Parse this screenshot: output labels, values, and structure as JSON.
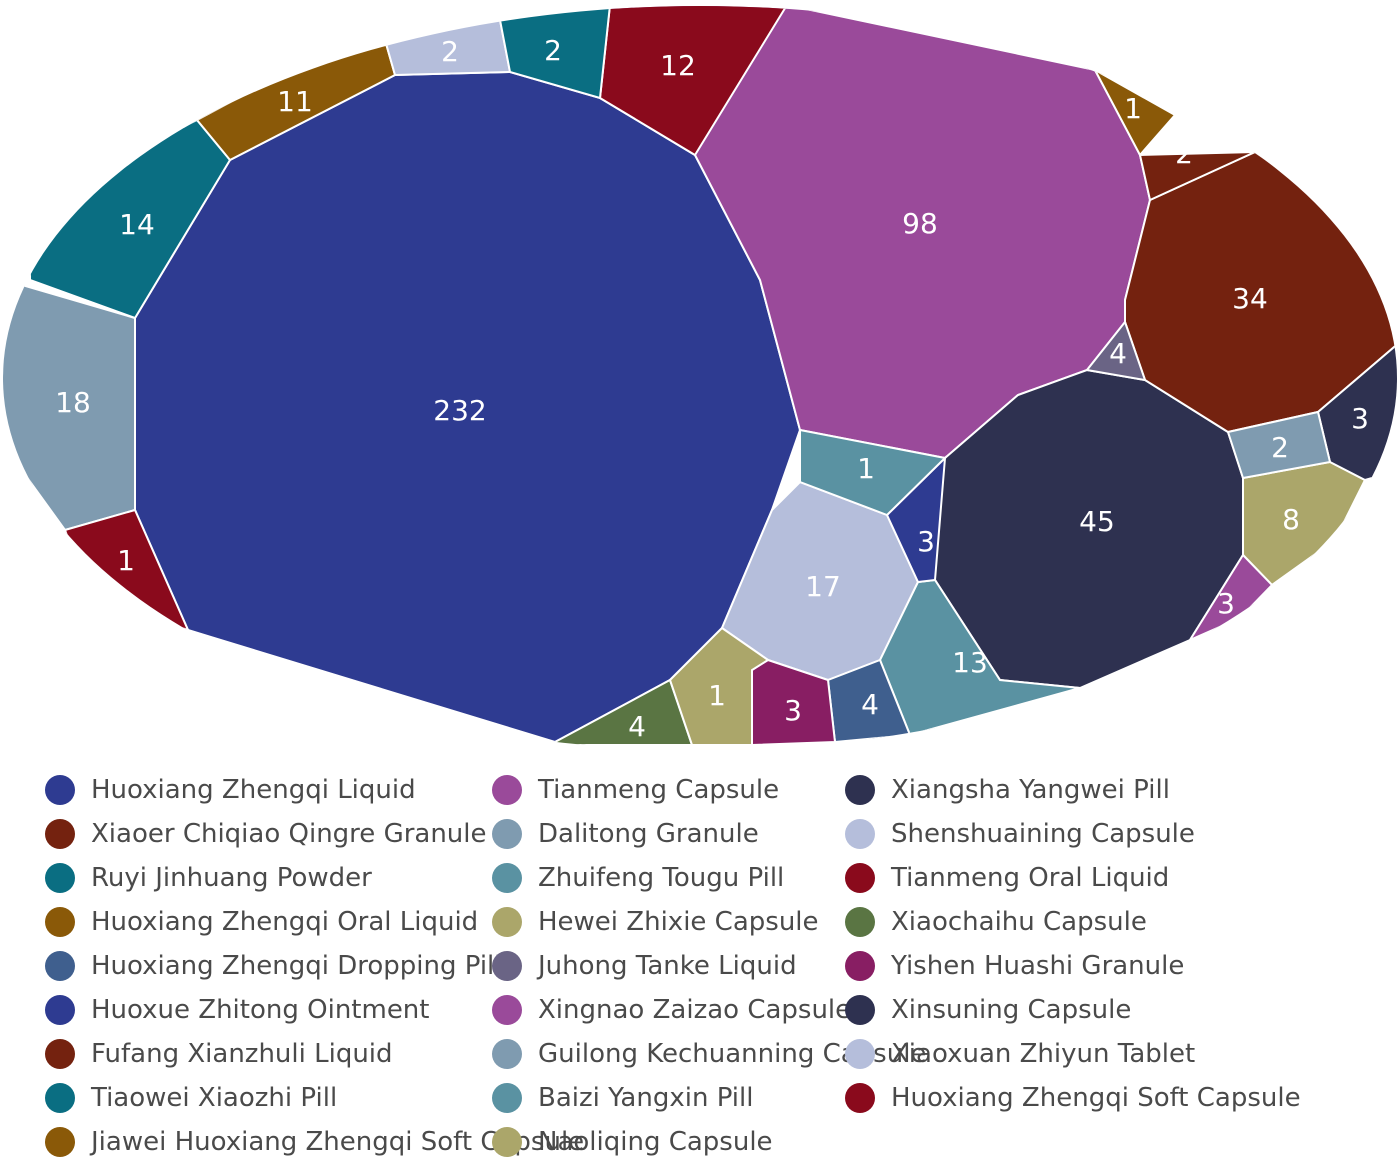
{
  "chart_data": {
    "type": "voronoi-treemap",
    "title": "",
    "shape": "ellipse",
    "cells": [
      {
        "name": "Huoxiang Zhengqi Liquid",
        "value": 232,
        "color": "#2e3b91"
      },
      {
        "name": "Tianmeng Capsule",
        "value": 98,
        "color": "#9a4a9a"
      },
      {
        "name": "Xiangsha Yangwei Pill",
        "value": 45,
        "color": "#2e3150"
      },
      {
        "name": "Xiaoer Chiqiao Qingre Granule",
        "value": 34,
        "color": "#74220f"
      },
      {
        "name": "Dalitong Granule",
        "value": 18,
        "color": "#7f9bb0"
      },
      {
        "name": "Shenshuaining Capsule",
        "value": 17,
        "color": "#b5bedb"
      },
      {
        "name": "Ruyi Jinhuang Powder",
        "value": 14,
        "color": "#0a6e82"
      },
      {
        "name": "Zhuifeng Tougu Pill",
        "value": 13,
        "color": "#5a92a2"
      },
      {
        "name": "Tianmeng Oral Liquid",
        "value": 12,
        "color": "#8a0a1c"
      },
      {
        "name": "Huoxiang Zhengqi Oral Liquid",
        "value": 11,
        "color": "#8a5908"
      },
      {
        "name": "Hewei Zhixie Capsule",
        "value": 8,
        "color": "#aba66a"
      },
      {
        "name": "Xiaochaihu Capsule",
        "value": 4,
        "color": "#5a7543"
      },
      {
        "name": "Huoxiang Zhengqi Dropping Pill",
        "value": 4,
        "color": "#3f5f8e"
      },
      {
        "name": "Juhong Tanke Liquid",
        "value": 4,
        "color": "#6a6485"
      },
      {
        "name": "Yishen Huashi Granule",
        "value": 3,
        "color": "#881e63"
      },
      {
        "name": "Huoxue Zhitong Ointment",
        "value": 3,
        "color": "#2e3b91"
      },
      {
        "name": "Xingnao Zaizao Capsule",
        "value": 3,
        "color": "#9a4a9a"
      },
      {
        "name": "Xinsuning Capsule",
        "value": 3,
        "color": "#2e3150"
      },
      {
        "name": "Fufang Xianzhuli Liquid",
        "value": 2,
        "color": "#74220f"
      },
      {
        "name": "Guilong Kechuanning Capsule",
        "value": 2,
        "color": "#7f9bb0"
      },
      {
        "name": "Xiaoxuan Zhiyun Tablet",
        "value": 2,
        "color": "#b5bedb"
      },
      {
        "name": "Tiaowei Xiaozhi Pill",
        "value": 2,
        "color": "#0a6e82"
      },
      {
        "name": "Baizi Yangxin Pill",
        "value": 1,
        "color": "#5a92a2"
      },
      {
        "name": "Huoxiang Zhengqi Soft Capsule",
        "value": 1,
        "color": "#8a0a1c"
      },
      {
        "name": "Jiawei Huoxiang Zhengqi Soft Capsule",
        "value": 1,
        "color": "#8a5908"
      },
      {
        "name": "Naoliqing Capsule",
        "value": 1,
        "color": "#aba66a"
      }
    ],
    "legend": {
      "placement": "bottom",
      "rows": [
        [
          "Huoxiang Zhengqi Liquid",
          "Tianmeng Capsule",
          "Xiangsha Yangwei Pill"
        ],
        [
          "Xiaoer Chiqiao Qingre Granule",
          "Dalitong Granule",
          "Shenshuaining Capsule"
        ],
        [
          "Ruyi Jinhuang Powder",
          "Zhuifeng Tougu Pill",
          "Tianmeng Oral Liquid"
        ],
        [
          "Huoxiang Zhengqi Oral Liquid",
          "Hewei Zhixie Capsule",
          "Xiaochaihu Capsule"
        ],
        [
          "Huoxiang Zhengqi Dropping Pill",
          "Juhong Tanke Liquid",
          "Yishen Huashi Granule"
        ],
        [
          "Huoxue Zhitong Ointment",
          "Xingnao Zaizao Capsule",
          "Xinsuning Capsule"
        ],
        [
          "Fufang Xianzhuli Liquid",
          "Guilong Kechuanning Capsule",
          "Xiaoxuan Zhiyun Tablet"
        ],
        [
          "Tiaowei Xiaozhi Pill",
          "Baizi Yangxin Pill",
          "Huoxiang Zhengqi Soft Capsule"
        ],
        [
          "Jiawei Huoxiang Zhengqi Soft Capsule",
          "Naoliqing Capsule"
        ]
      ]
    }
  }
}
